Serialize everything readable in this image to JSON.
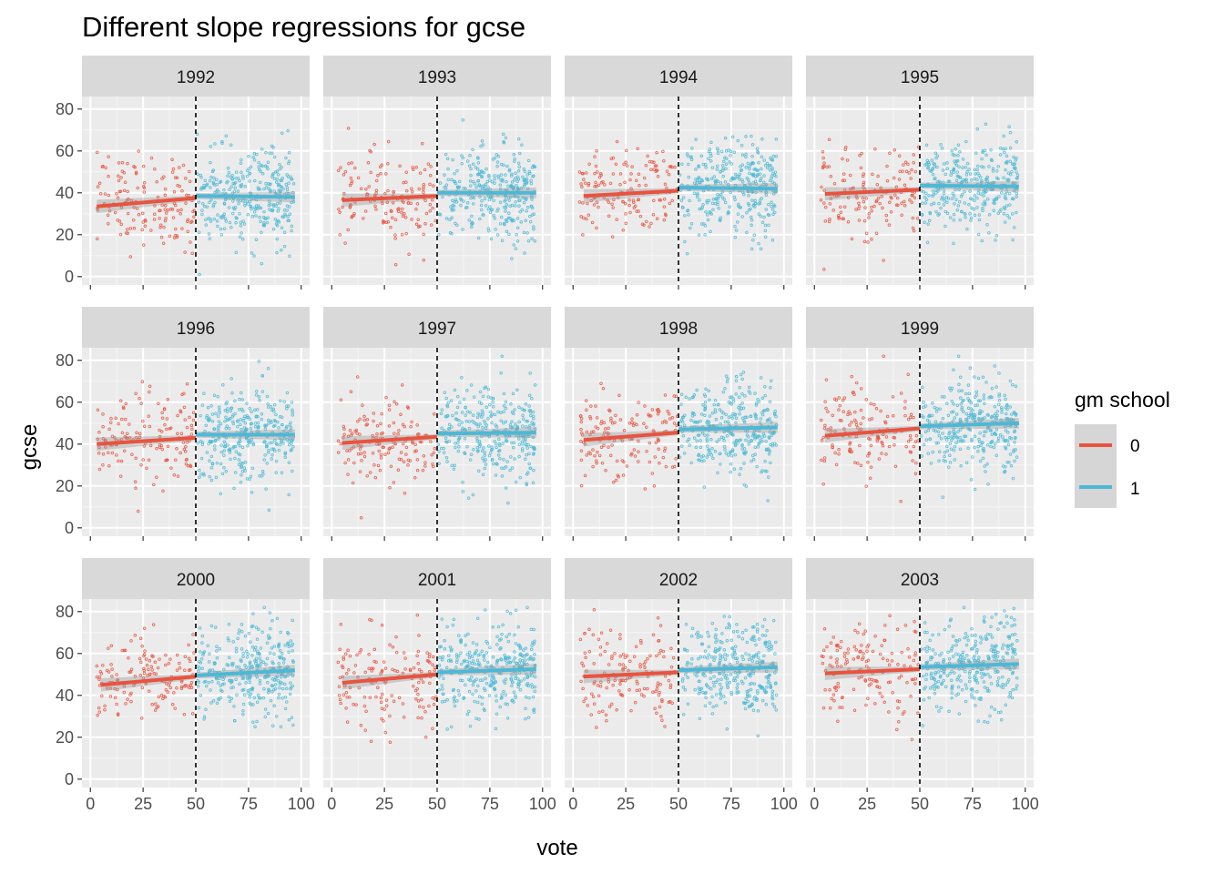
{
  "chart_data": {
    "type": "scatter",
    "title": "Different slope regressions for gcse",
    "xlabel": "vote",
    "ylabel": "gcse",
    "xlim": [
      0,
      100
    ],
    "ylim": [
      0,
      80
    ],
    "x_ticks": [
      "0",
      "25",
      "50",
      "75",
      "100"
    ],
    "y_ticks": [
      "0",
      "20",
      "40",
      "60",
      "80"
    ],
    "cutoff": 50,
    "grid": true,
    "legend": {
      "title": "gm school",
      "position": "right",
      "entries": [
        {
          "label": "0",
          "color": "#E8533F"
        },
        {
          "label": "1",
          "color": "#4DB8D6"
        }
      ]
    },
    "panels": [
      {
        "label": "1992",
        "fit": {
          "gm0": [
            [
              3,
              33.5
            ],
            [
              50,
              37.5
            ]
          ],
          "gm1": [
            [
              50,
              38.5
            ],
            [
              97,
              38
            ]
          ]
        },
        "center": {
          "gm0": 36,
          "gm1": 38
        }
      },
      {
        "label": "1993",
        "fit": {
          "gm0": [
            [
              5,
              36.5
            ],
            [
              50,
              38.5
            ]
          ],
          "gm1": [
            [
              50,
              40
            ],
            [
              97,
              40
            ]
          ]
        },
        "center": {
          "gm0": 37,
          "gm1": 40
        }
      },
      {
        "label": "1994",
        "fit": {
          "gm0": [
            [
              5,
              38.5
            ],
            [
              50,
              41
            ]
          ],
          "gm1": [
            [
              50,
              42.5
            ],
            [
              97,
              42
            ]
          ]
        },
        "center": {
          "gm0": 40,
          "gm1": 42
        }
      },
      {
        "label": "1995",
        "fit": {
          "gm0": [
            [
              5,
              39.5
            ],
            [
              50,
              41.5
            ]
          ],
          "gm1": [
            [
              50,
              43.5
            ],
            [
              97,
              43
            ]
          ]
        },
        "center": {
          "gm0": 40,
          "gm1": 43
        }
      },
      {
        "label": "1996",
        "fit": {
          "gm0": [
            [
              3,
              40
            ],
            [
              50,
              43
            ]
          ],
          "gm1": [
            [
              50,
              44.5
            ],
            [
              97,
              44.5
            ]
          ]
        },
        "center": {
          "gm0": 41,
          "gm1": 45
        }
      },
      {
        "label": "1997",
        "fit": {
          "gm0": [
            [
              5,
              40.5
            ],
            [
              50,
              43.5
            ]
          ],
          "gm1": [
            [
              50,
              45
            ],
            [
              97,
              45.5
            ]
          ]
        },
        "center": {
          "gm0": 42,
          "gm1": 45
        }
      },
      {
        "label": "1998",
        "fit": {
          "gm0": [
            [
              5,
              42
            ],
            [
              50,
              45.5
            ]
          ],
          "gm1": [
            [
              50,
              47
            ],
            [
              97,
              48
            ]
          ]
        },
        "center": {
          "gm0": 44,
          "gm1": 47
        }
      },
      {
        "label": "1999",
        "fit": {
          "gm0": [
            [
              5,
              44
            ],
            [
              50,
              47.5
            ]
          ],
          "gm1": [
            [
              50,
              48.5
            ],
            [
              97,
              50
            ]
          ]
        },
        "center": {
          "gm0": 46,
          "gm1": 49
        }
      },
      {
        "label": "2000",
        "fit": {
          "gm0": [
            [
              5,
              45
            ],
            [
              50,
              49
            ]
          ],
          "gm1": [
            [
              50,
              49.5
            ],
            [
              97,
              52
            ]
          ]
        },
        "center": {
          "gm0": 47,
          "gm1": 51
        }
      },
      {
        "label": "2001",
        "fit": {
          "gm0": [
            [
              5,
              46
            ],
            [
              50,
              50
            ]
          ],
          "gm1": [
            [
              50,
              51
            ],
            [
              97,
              52.5
            ]
          ]
        },
        "center": {
          "gm0": 48,
          "gm1": 52
        }
      },
      {
        "label": "2002",
        "fit": {
          "gm0": [
            [
              5,
              49
            ],
            [
              50,
              51
            ]
          ],
          "gm1": [
            [
              50,
              52
            ],
            [
              97,
              53.5
            ]
          ]
        },
        "center": {
          "gm0": 50,
          "gm1": 53
        }
      },
      {
        "label": "2003",
        "fit": {
          "gm0": [
            [
              5,
              50.5
            ],
            [
              50,
              52.5
            ]
          ],
          "gm1": [
            [
              50,
              53.5
            ],
            [
              97,
              55
            ]
          ]
        },
        "center": {
          "gm0": 51,
          "gm1": 54
        }
      }
    ]
  }
}
